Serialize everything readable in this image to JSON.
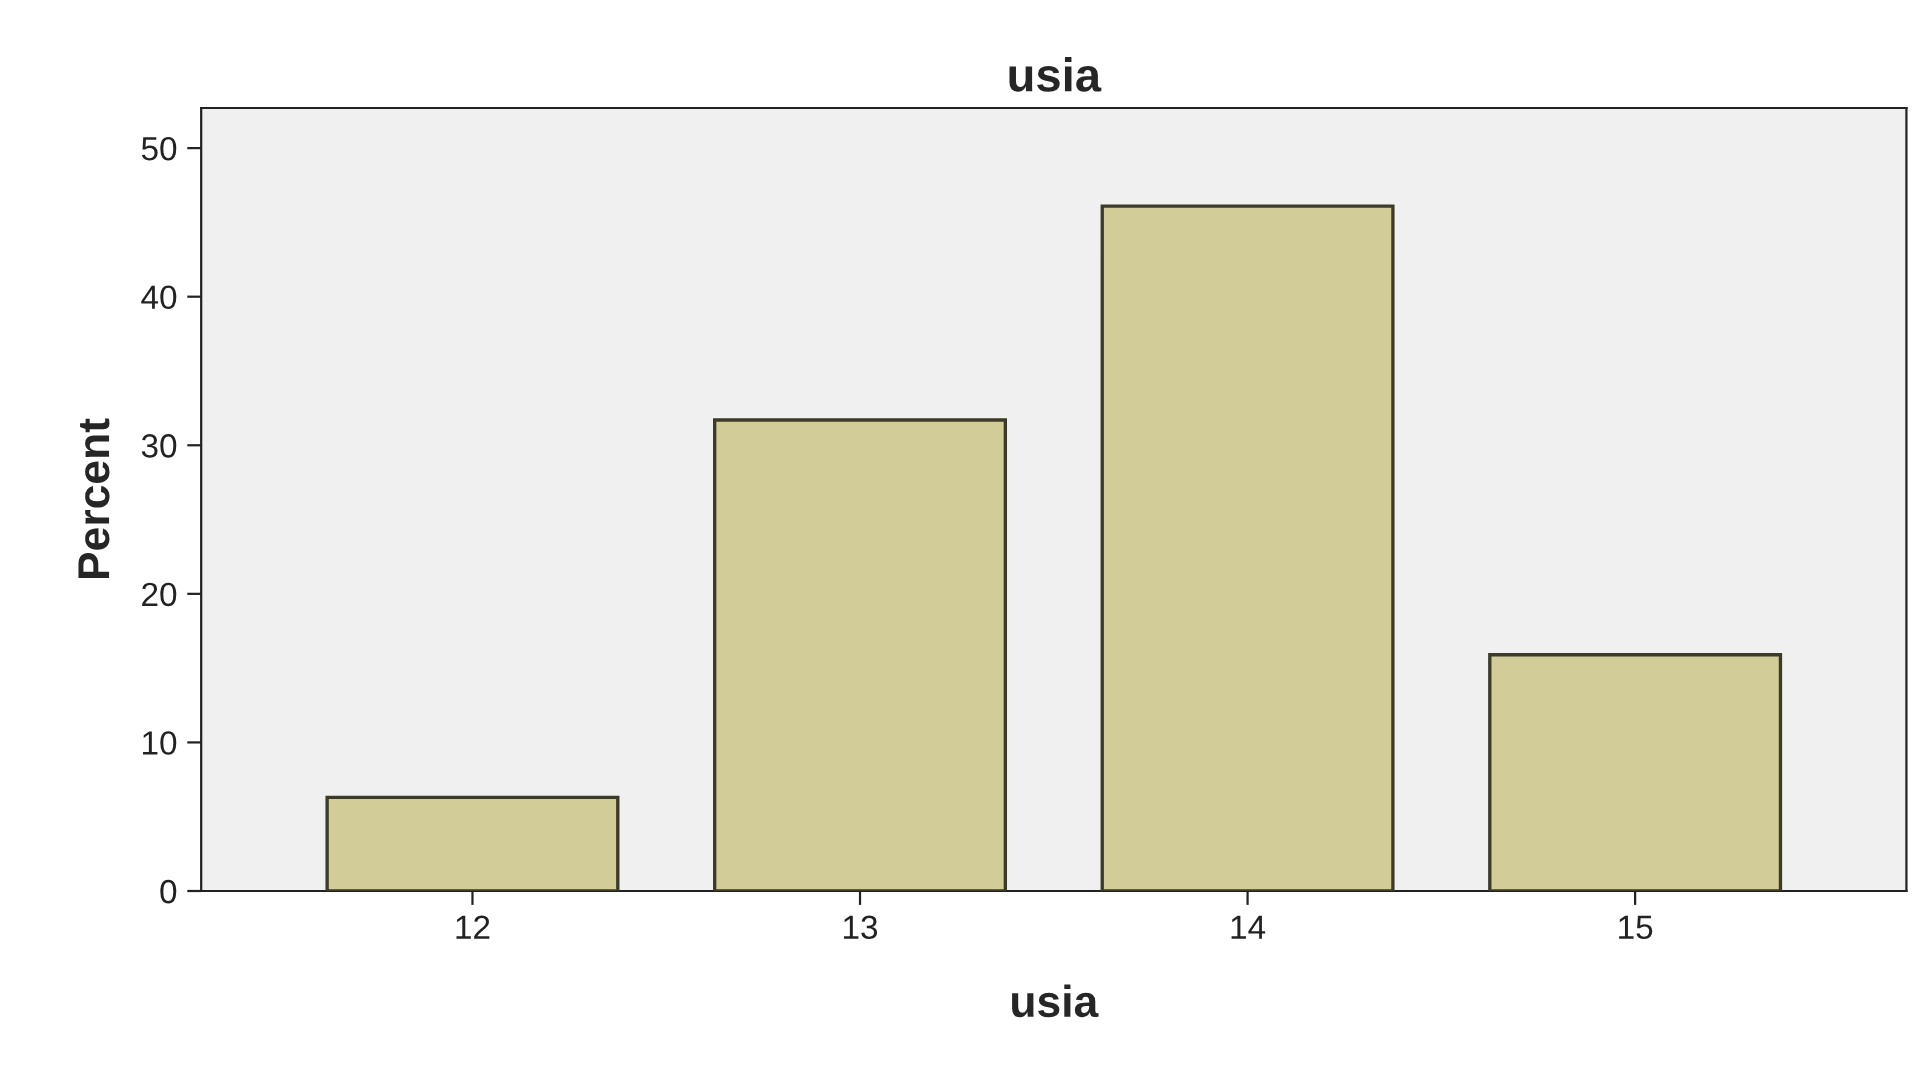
{
  "chart_data": {
    "type": "bar",
    "title": "usia",
    "xlabel": "usia",
    "ylabel": "Percent",
    "categories": [
      "12",
      "13",
      "14",
      "15"
    ],
    "values": [
      6.3,
      31.7,
      46.1,
      15.9
    ],
    "color": "#d2cd98",
    "ylim": [
      0,
      52.7
    ],
    "yticks": [
      0,
      10,
      20,
      30,
      40,
      50
    ],
    "grid": false,
    "legend": false
  }
}
